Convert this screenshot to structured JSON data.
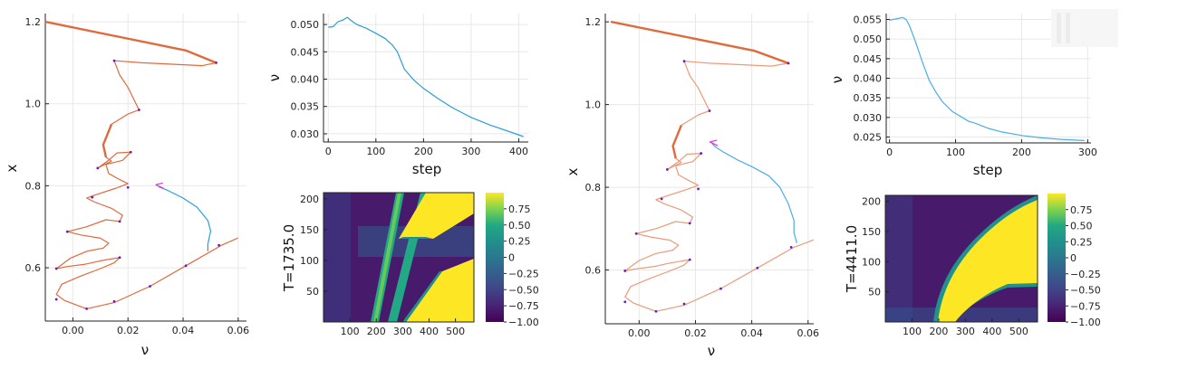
{
  "chart_data": [
    {
      "type": "line",
      "panel": "left-trajectory",
      "xlabel": "ν",
      "ylabel": "x",
      "xlim": [
        -0.01,
        0.063
      ],
      "ylim": [
        0.47,
        1.22
      ],
      "xticks": [
        0.0,
        0.02,
        0.04,
        0.06
      ],
      "xtick_labels": [
        "0.00",
        "0.02",
        "0.04",
        "0.06"
      ],
      "yticks": [
        0.6,
        0.8,
        1.0,
        1.2
      ],
      "ytick_labels": [
        "0.6",
        "0.8",
        "1.0",
        "1.2"
      ],
      "grid": true,
      "colors": {
        "branch": "#e06a3c",
        "trajectory": "#2a9fd6",
        "marker": "#6a1cc4",
        "end": "#e02ae0"
      },
      "series": [
        {
          "role": "branch",
          "points": [
            [
              -0.01,
              1.2
            ],
            [
              0.041,
              1.13
            ],
            [
              0.052,
              1.1
            ],
            [
              0.047,
              1.093
            ],
            [
              0.025,
              1.1
            ],
            [
              0.015,
              1.105
            ],
            [
              0.017,
              1.07
            ],
            [
              0.02,
              1.04
            ],
            [
              0.024,
              0.985
            ],
            [
              0.02,
              0.975
            ],
            [
              0.014,
              0.95
            ],
            [
              0.011,
              0.9
            ],
            [
              0.012,
              0.87
            ],
            [
              0.014,
              0.86
            ],
            [
              0.009,
              0.843
            ],
            [
              0.013,
              0.862
            ],
            [
              0.016,
              0.88
            ],
            [
              0.021,
              0.882
            ],
            [
              0.018,
              0.862
            ],
            [
              0.012,
              0.852
            ],
            [
              0.013,
              0.83
            ],
            [
              0.017,
              0.815
            ],
            [
              0.02,
              0.805
            ],
            [
              0.016,
              0.795
            ],
            [
              0.007,
              0.775
            ],
            [
              0.005,
              0.77
            ],
            [
              0.008,
              0.76
            ],
            [
              0.014,
              0.745
            ],
            [
              0.018,
              0.728
            ],
            [
              0.017,
              0.713
            ],
            [
              0.012,
              0.717
            ],
            [
              0.005,
              0.7
            ],
            [
              -0.002,
              0.688
            ],
            [
              0.003,
              0.68
            ],
            [
              0.01,
              0.672
            ],
            [
              0.013,
              0.66
            ],
            [
              0.011,
              0.648
            ],
            [
              0.005,
              0.64
            ],
            [
              -0.001,
              0.623
            ],
            [
              -0.006,
              0.598
            ],
            [
              -0.002,
              0.603
            ],
            [
              0.004,
              0.608
            ],
            [
              0.01,
              0.617
            ],
            [
              0.017,
              0.625
            ],
            [
              0.015,
              0.612
            ],
            [
              0.01,
              0.598
            ],
            [
              0.003,
              0.58
            ],
            [
              -0.004,
              0.56
            ],
            [
              -0.006,
              0.535
            ],
            [
              -0.003,
              0.52
            ],
            [
              0.005,
              0.5
            ],
            [
              0.015,
              0.515
            ],
            [
              0.028,
              0.555
            ],
            [
              0.041,
              0.605
            ],
            [
              0.054,
              0.655
            ],
            [
              0.06,
              0.673
            ]
          ]
        },
        {
          "role": "trajectory",
          "points": [
            [
              0.031,
              0.798
            ],
            [
              0.034,
              0.79
            ],
            [
              0.04,
              0.77
            ],
            [
              0.045,
              0.748
            ],
            [
              0.049,
              0.715
            ],
            [
              0.05,
              0.69
            ],
            [
              0.049,
              0.658
            ],
            [
              0.049,
              0.64
            ]
          ]
        },
        {
          "role": "marker",
          "points": [
            [
              0.052,
              1.1
            ],
            [
              0.015,
              1.105
            ],
            [
              0.024,
              0.985
            ],
            [
              0.021,
              0.882
            ],
            [
              0.009,
              0.843
            ],
            [
              0.02,
              0.796
            ],
            [
              0.007,
              0.772
            ],
            [
              0.017,
              0.713
            ],
            [
              -0.002,
              0.688
            ],
            [
              0.017,
              0.625
            ],
            [
              -0.006,
              0.598
            ],
            [
              -0.006,
              0.523
            ],
            [
              0.005,
              0.5
            ],
            [
              0.015,
              0.518
            ],
            [
              0.028,
              0.555
            ],
            [
              0.041,
              0.605
            ],
            [
              0.053,
              0.655
            ]
          ]
        }
      ]
    },
    {
      "type": "line",
      "panel": "left-nu-vs-step",
      "xlabel": "step",
      "ylabel": "ν",
      "xlim": [
        -10,
        420
      ],
      "ylim": [
        0.0285,
        0.052
      ],
      "xticks": [
        0,
        100,
        200,
        300,
        400
      ],
      "xtick_labels": [
        "0",
        "100",
        "200",
        "300",
        "400"
      ],
      "yticks": [
        0.03,
        0.035,
        0.04,
        0.045,
        0.05
      ],
      "ytick_labels": [
        "0.030",
        "0.035",
        "0.040",
        "0.045",
        "0.050"
      ],
      "grid": true,
      "colors": {
        "line": "#2a9fd6"
      },
      "x": [
        0,
        10,
        20,
        30,
        40,
        50,
        60,
        80,
        100,
        120,
        135,
        145,
        160,
        180,
        200,
        230,
        260,
        300,
        340,
        380,
        410
      ],
      "y": [
        0.0495,
        0.0496,
        0.0505,
        0.0508,
        0.0513,
        0.0506,
        0.05,
        0.0493,
        0.0484,
        0.0474,
        0.0462,
        0.045,
        0.0418,
        0.0398,
        0.0383,
        0.0365,
        0.0348,
        0.033,
        0.0316,
        0.0304,
        0.0295
      ]
    },
    {
      "type": "heatmap",
      "panel": "left-heatmap",
      "ylabel": "T=1735.0",
      "xlim": [
        0,
        570
      ],
      "ylim": [
        0,
        210
      ],
      "xticks": [
        100,
        200,
        300,
        400,
        500
      ],
      "xtick_labels": [
        "100",
        "200",
        "300",
        "400",
        "500"
      ],
      "yticks": [
        50,
        100,
        150,
        200
      ],
      "ytick_labels": [
        "50",
        "100",
        "150",
        "200"
      ],
      "colorbar": {
        "min": -1.0,
        "max": 1.0,
        "ticks": [
          0.75,
          0.5,
          0.25,
          0.0,
          -0.25,
          -0.5,
          -0.75,
          -1.0
        ],
        "tick_labels": [
          "0.75",
          "0.50",
          "0.25",
          "0",
          "−0.25",
          "−0.50",
          "−0.75",
          "−1.00"
        ]
      }
    },
    {
      "type": "line",
      "panel": "right-trajectory",
      "xlabel": "ν",
      "ylabel": "x",
      "xlim": [
        -0.012,
        0.062
      ],
      "ylim": [
        0.47,
        1.22
      ],
      "xticks": [
        0.0,
        0.02,
        0.04,
        0.06
      ],
      "xtick_labels": [
        "0.00",
        "0.02",
        "0.04",
        "0.06"
      ],
      "yticks": [
        0.6,
        0.8,
        1.0,
        1.2
      ],
      "ytick_labels": [
        "0.6",
        "0.8",
        "1.0",
        "1.2"
      ],
      "grid": true,
      "colors": {
        "branch": "#ec9a7a",
        "branch_strong": "#e06a3c",
        "trajectory": "#4aaee6",
        "marker": "#6a1cc4",
        "end": "#e02ae0"
      },
      "series": [
        {
          "role": "branch",
          "points": [
            [
              -0.01,
              1.2
            ],
            [
              0.041,
              1.13
            ],
            [
              0.053,
              1.1
            ],
            [
              0.047,
              1.093
            ],
            [
              0.025,
              1.1
            ],
            [
              0.016,
              1.105
            ],
            [
              0.018,
              1.07
            ],
            [
              0.021,
              1.04
            ],
            [
              0.025,
              0.985
            ],
            [
              0.021,
              0.975
            ],
            [
              0.015,
              0.95
            ],
            [
              0.012,
              0.9
            ],
            [
              0.013,
              0.87
            ],
            [
              0.015,
              0.86
            ],
            [
              0.01,
              0.843
            ],
            [
              0.014,
              0.862
            ],
            [
              0.017,
              0.88
            ],
            [
              0.022,
              0.882
            ],
            [
              0.019,
              0.862
            ],
            [
              0.013,
              0.852
            ],
            [
              0.014,
              0.83
            ],
            [
              0.018,
              0.815
            ],
            [
              0.021,
              0.805
            ],
            [
              0.017,
              0.795
            ],
            [
              0.008,
              0.775
            ],
            [
              0.006,
              0.77
            ],
            [
              0.009,
              0.76
            ],
            [
              0.015,
              0.745
            ],
            [
              0.019,
              0.728
            ],
            [
              0.018,
              0.713
            ],
            [
              0.013,
              0.717
            ],
            [
              0.006,
              0.7
            ],
            [
              -0.001,
              0.688
            ],
            [
              0.004,
              0.68
            ],
            [
              0.011,
              0.672
            ],
            [
              0.014,
              0.66
            ],
            [
              0.012,
              0.648
            ],
            [
              0.006,
              0.64
            ],
            [
              0.0,
              0.623
            ],
            [
              -0.005,
              0.598
            ],
            [
              -0.001,
              0.603
            ],
            [
              0.005,
              0.608
            ],
            [
              0.011,
              0.617
            ],
            [
              0.018,
              0.625
            ],
            [
              0.016,
              0.612
            ],
            [
              0.011,
              0.598
            ],
            [
              0.004,
              0.58
            ],
            [
              -0.003,
              0.56
            ],
            [
              -0.005,
              0.535
            ],
            [
              -0.002,
              0.52
            ],
            [
              0.006,
              0.5
            ],
            [
              0.016,
              0.515
            ],
            [
              0.029,
              0.555
            ],
            [
              0.042,
              0.605
            ],
            [
              0.055,
              0.655
            ],
            [
              0.062,
              0.673
            ]
          ]
        },
        {
          "role": "trajectory",
          "points": [
            [
              0.026,
              0.905
            ],
            [
              0.027,
              0.898
            ],
            [
              0.03,
              0.885
            ],
            [
              0.035,
              0.866
            ],
            [
              0.04,
              0.85
            ],
            [
              0.046,
              0.828
            ],
            [
              0.05,
              0.8
            ],
            [
              0.053,
              0.76
            ],
            [
              0.055,
              0.72
            ],
            [
              0.055,
              0.69
            ],
            [
              0.056,
              0.665
            ]
          ]
        },
        {
          "role": "marker",
          "points": [
            [
              0.053,
              1.1
            ],
            [
              0.016,
              1.105
            ],
            [
              0.025,
              0.985
            ],
            [
              0.022,
              0.882
            ],
            [
              0.01,
              0.843
            ],
            [
              0.021,
              0.796
            ],
            [
              0.008,
              0.772
            ],
            [
              0.018,
              0.713
            ],
            [
              -0.001,
              0.688
            ],
            [
              0.018,
              0.625
            ],
            [
              -0.005,
              0.598
            ],
            [
              -0.005,
              0.523
            ],
            [
              0.006,
              0.5
            ],
            [
              0.016,
              0.518
            ],
            [
              0.029,
              0.555
            ],
            [
              0.042,
              0.605
            ],
            [
              0.054,
              0.655
            ]
          ]
        }
      ]
    },
    {
      "type": "line",
      "panel": "right-nu-vs-step",
      "xlabel": "step",
      "ylabel": "ν",
      "xlim": [
        -5,
        305
      ],
      "ylim": [
        0.0235,
        0.0565
      ],
      "xticks": [
        0,
        100,
        200,
        300
      ],
      "xtick_labels": [
        "0",
        "100",
        "200",
        "300"
      ],
      "yticks": [
        0.025,
        0.03,
        0.035,
        0.04,
        0.045,
        0.05,
        0.055
      ],
      "ytick_labels": [
        "0.025",
        "0.030",
        "0.035",
        "0.040",
        "0.045",
        "0.050",
        "0.055"
      ],
      "grid": true,
      "colors": {
        "line": "#4aaee6"
      },
      "x": [
        0,
        5,
        12,
        20,
        25,
        30,
        40,
        50,
        60,
        70,
        80,
        95,
        110,
        120,
        130,
        150,
        170,
        200,
        230,
        260,
        295
      ],
      "y": [
        0.0548,
        0.055,
        0.0552,
        0.0555,
        0.055,
        0.0535,
        0.049,
        0.044,
        0.0395,
        0.0365,
        0.034,
        0.0315,
        0.03,
        0.029,
        0.0285,
        0.0272,
        0.0263,
        0.0254,
        0.0248,
        0.0244,
        0.0241
      ]
    },
    {
      "type": "heatmap",
      "panel": "right-heatmap",
      "ylabel": "T=4411.0",
      "xlim": [
        0,
        570
      ],
      "ylim": [
        0,
        210
      ],
      "xticks": [
        100,
        200,
        300,
        400,
        500
      ],
      "xtick_labels": [
        "100",
        "200",
        "300",
        "400",
        "500"
      ],
      "yticks": [
        50,
        100,
        150,
        200
      ],
      "ytick_labels": [
        "50",
        "100",
        "150",
        "200"
      ],
      "colorbar": {
        "min": -1.0,
        "max": 1.0,
        "ticks": [
          0.75,
          0.5,
          0.25,
          0.0,
          -0.25,
          -0.5,
          -0.75,
          -1.0
        ],
        "tick_labels": [
          "0.75",
          "0.50",
          "0.25",
          "0",
          "−0.25",
          "−0.50",
          "−0.75",
          "−1.00"
        ]
      }
    }
  ]
}
